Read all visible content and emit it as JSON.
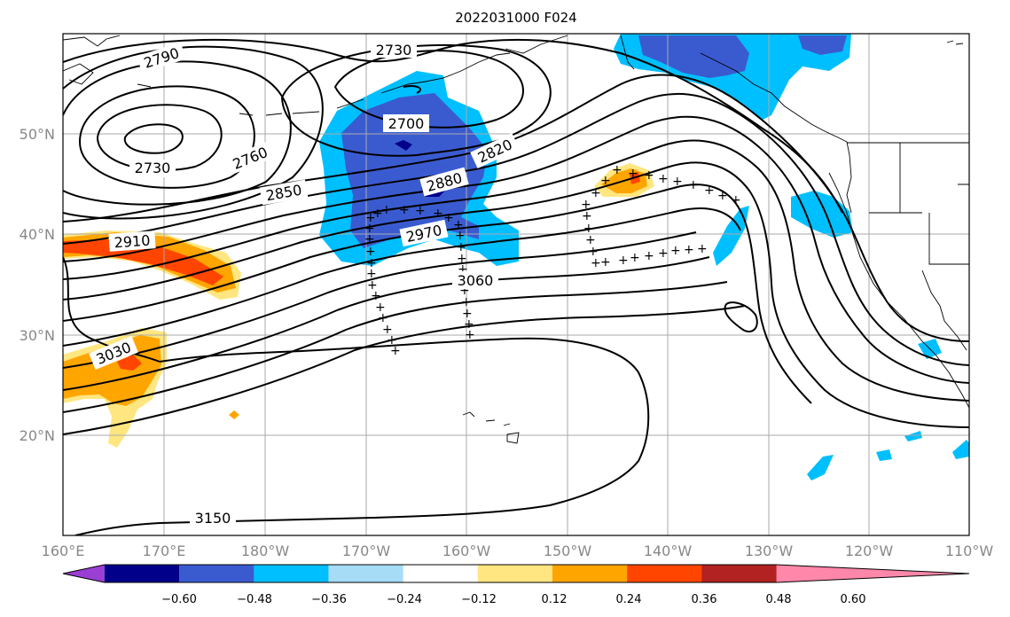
{
  "title": "2022031000 F024",
  "lat_ticks": [
    "50°N",
    "40°N",
    "30°N",
    "20°N"
  ],
  "lon_ticks": [
    "160°E",
    "170°E",
    "180°W",
    "170°W",
    "160°W",
    "150°W",
    "140°W",
    "130°W",
    "120°W",
    "110°W"
  ],
  "contour_labels": [
    "2790",
    "2730",
    "2700",
    "2730",
    "2760",
    "2820",
    "2850",
    "2880",
    "2910",
    "2970",
    "3060",
    "3030",
    "3150"
  ],
  "colorbar": {
    "colors": [
      "#9b3fd4",
      "#00008b",
      "#3a5bd0",
      "#00bfff",
      "#a6dcf6",
      "#ffffff",
      "#ffe680",
      "#ffa500",
      "#ff4500",
      "#b22222",
      "#ff88aa"
    ],
    "labels": [
      "−0.60",
      "−0.48",
      "−0.36",
      "−0.24",
      "−0.12",
      "0.12",
      "0.24",
      "0.36",
      "0.48",
      "0.60"
    ]
  }
}
